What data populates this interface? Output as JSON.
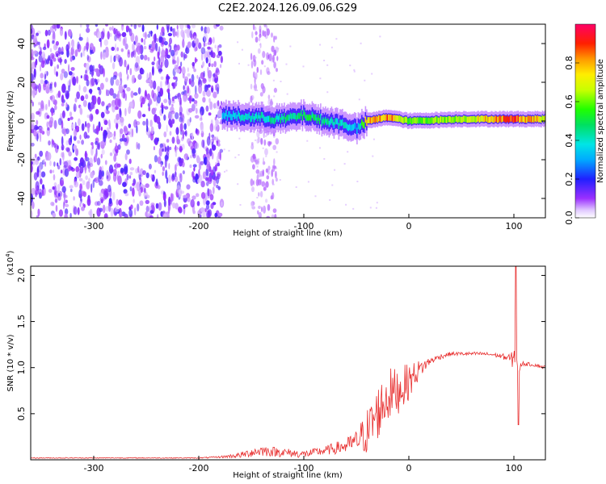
{
  "chart_data": [
    {
      "type": "heatmap",
      "title": "C2E2.2024.126.09.06.G29",
      "xlabel": "Height of straight line (km)",
      "ylabel": "Frequency (Hz)",
      "xlim": [
        -360,
        130
      ],
      "ylim": [
        -50,
        50
      ],
      "x_ticks": [
        -300,
        -200,
        -100,
        0,
        100
      ],
      "y_ticks": [
        -40,
        -20,
        0,
        20,
        40
      ],
      "colorbar": {
        "label": "Normalized spectral amplitude",
        "range": [
          0,
          1
        ],
        "ticks": [
          "0.0",
          "0.2",
          "0.4",
          "0.6",
          "0.8"
        ]
      },
      "features": {
        "noise_region_x": [
          -360,
          -178
        ],
        "noise_streak_x": [
          -150,
          -125
        ],
        "signal_ridge": {
          "x": [
            -178,
            -150,
            -120,
            -100,
            -80,
            -60,
            -50,
            -40,
            -20,
            0,
            50,
            100,
            130
          ],
          "freq": [
            3,
            2,
            1,
            3,
            0,
            -2,
            -4,
            0,
            2,
            0,
            1,
            1,
            1
          ],
          "peak_amplitude": [
            0.35,
            0.4,
            0.45,
            0.5,
            0.45,
            0.4,
            0.3,
            0.8,
            0.85,
            0.6,
            0.65,
            0.9,
            0.7
          ]
        }
      }
    },
    {
      "type": "line",
      "xlabel": "Height of straight line (km)",
      "ylabel": "SNR (10 * v/v)",
      "y_multiplier": "(x10",
      "y_multiplier_exp": "4",
      "y_multiplier_close": ")",
      "xlim": [
        -360,
        130
      ],
      "ylim": [
        0,
        2.1
      ],
      "x_ticks": [
        -300,
        -200,
        -100,
        0,
        100
      ],
      "y_ticks": [
        "0.5",
        "1.0",
        "1.5",
        "2.0"
      ],
      "series": [
        {
          "color": "#e83030",
          "x": [
            -360,
            -300,
            -250,
            -200,
            -180,
            -160,
            -150,
            -140,
            -120,
            -100,
            -80,
            -60,
            -50,
            -40,
            -30,
            -20,
            -10,
            0,
            10,
            20,
            30,
            40,
            50,
            60,
            70,
            80,
            90,
            95,
            100,
            102,
            104,
            106,
            110,
            120,
            130
          ],
          "y": [
            0.02,
            0.02,
            0.02,
            0.02,
            0.03,
            0.05,
            0.08,
            0.1,
            0.08,
            0.06,
            0.1,
            0.15,
            0.2,
            0.3,
            0.5,
            0.7,
            0.75,
            0.85,
            0.98,
            1.07,
            1.12,
            1.15,
            1.15,
            1.15,
            1.15,
            1.14,
            1.12,
            1.1,
            1.08,
            1.35,
            0.55,
            1.05,
            1.04,
            1.03,
            1.0
          ],
          "noise_amplitude": [
            0.005,
            0.005,
            0.005,
            0.005,
            0.01,
            0.03,
            0.05,
            0.06,
            0.05,
            0.04,
            0.05,
            0.08,
            0.12,
            0.25,
            0.3,
            0.3,
            0.25,
            0.2,
            0.1,
            0.04,
            0.03,
            0.02,
            0.02,
            0.02,
            0.02,
            0.02,
            0.03,
            0.05,
            0.1,
            0.3,
            0.3,
            0.04,
            0.02,
            0.02,
            0.02
          ]
        }
      ]
    }
  ]
}
